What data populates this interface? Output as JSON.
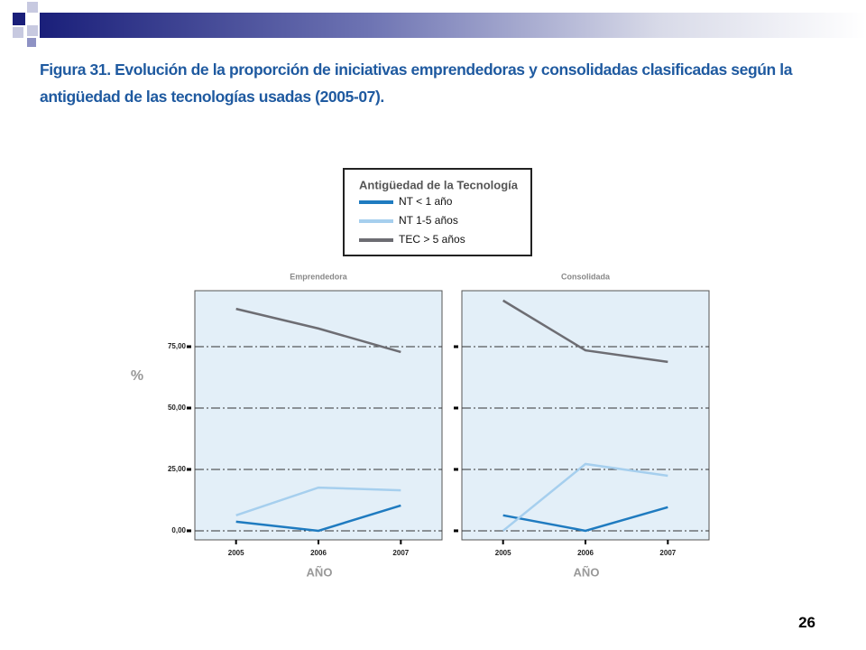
{
  "title": "Figura 31. Evolución de la proporción de iniciativas emprendedoras y consolidadas clasificadas según la antigüedad de las tecnologías usadas (2005-07).",
  "page_number": "26",
  "legend_title": "Antigüedad de la Tecnología",
  "y_label": "%",
  "chart_data": [
    {
      "type": "line",
      "title": "Emprendedora",
      "x_label": "AÑO",
      "categories": [
        "2005",
        "2006",
        "2007"
      ],
      "series": [
        {
          "name": "NT < 1 año",
          "color": "#1f7bc0",
          "values": [
            3.7,
            0,
            10.3
          ]
        },
        {
          "name": "NT 1-5 años",
          "color": "#a6cfee",
          "values": [
            6.3,
            17.6,
            16.5
          ]
        },
        {
          "name": "TEC > 5 años",
          "color": "#6d6d73",
          "values": [
            90.4,
            82.4,
            72.8
          ]
        }
      ],
      "ylim": [
        -3.7,
        97.8
      ],
      "yticks": [
        {
          "value": 0,
          "label": "0,00"
        },
        {
          "value": 25,
          "label": "25,00"
        },
        {
          "value": 50,
          "label": "50,00"
        },
        {
          "value": 75,
          "label": "75,00"
        }
      ],
      "grid": true
    },
    {
      "type": "line",
      "title": "Consolidada",
      "x_label": "AÑO",
      "categories": [
        "2005",
        "2006",
        "2007"
      ],
      "series": [
        {
          "color": "#1f7bc0",
          "values": [
            6.3,
            0,
            9.6
          ]
        },
        {
          "color": "#a6cfee",
          "values": [
            0,
            27.2,
            22.4
          ]
        },
        {
          "color": "#6d6d73",
          "values": [
            93.8,
            73.5,
            68.8
          ]
        }
      ],
      "ylim": [
        -3.7,
        97.8
      ],
      "yticks": [
        0,
        25,
        50,
        75
      ],
      "grid": true
    }
  ]
}
